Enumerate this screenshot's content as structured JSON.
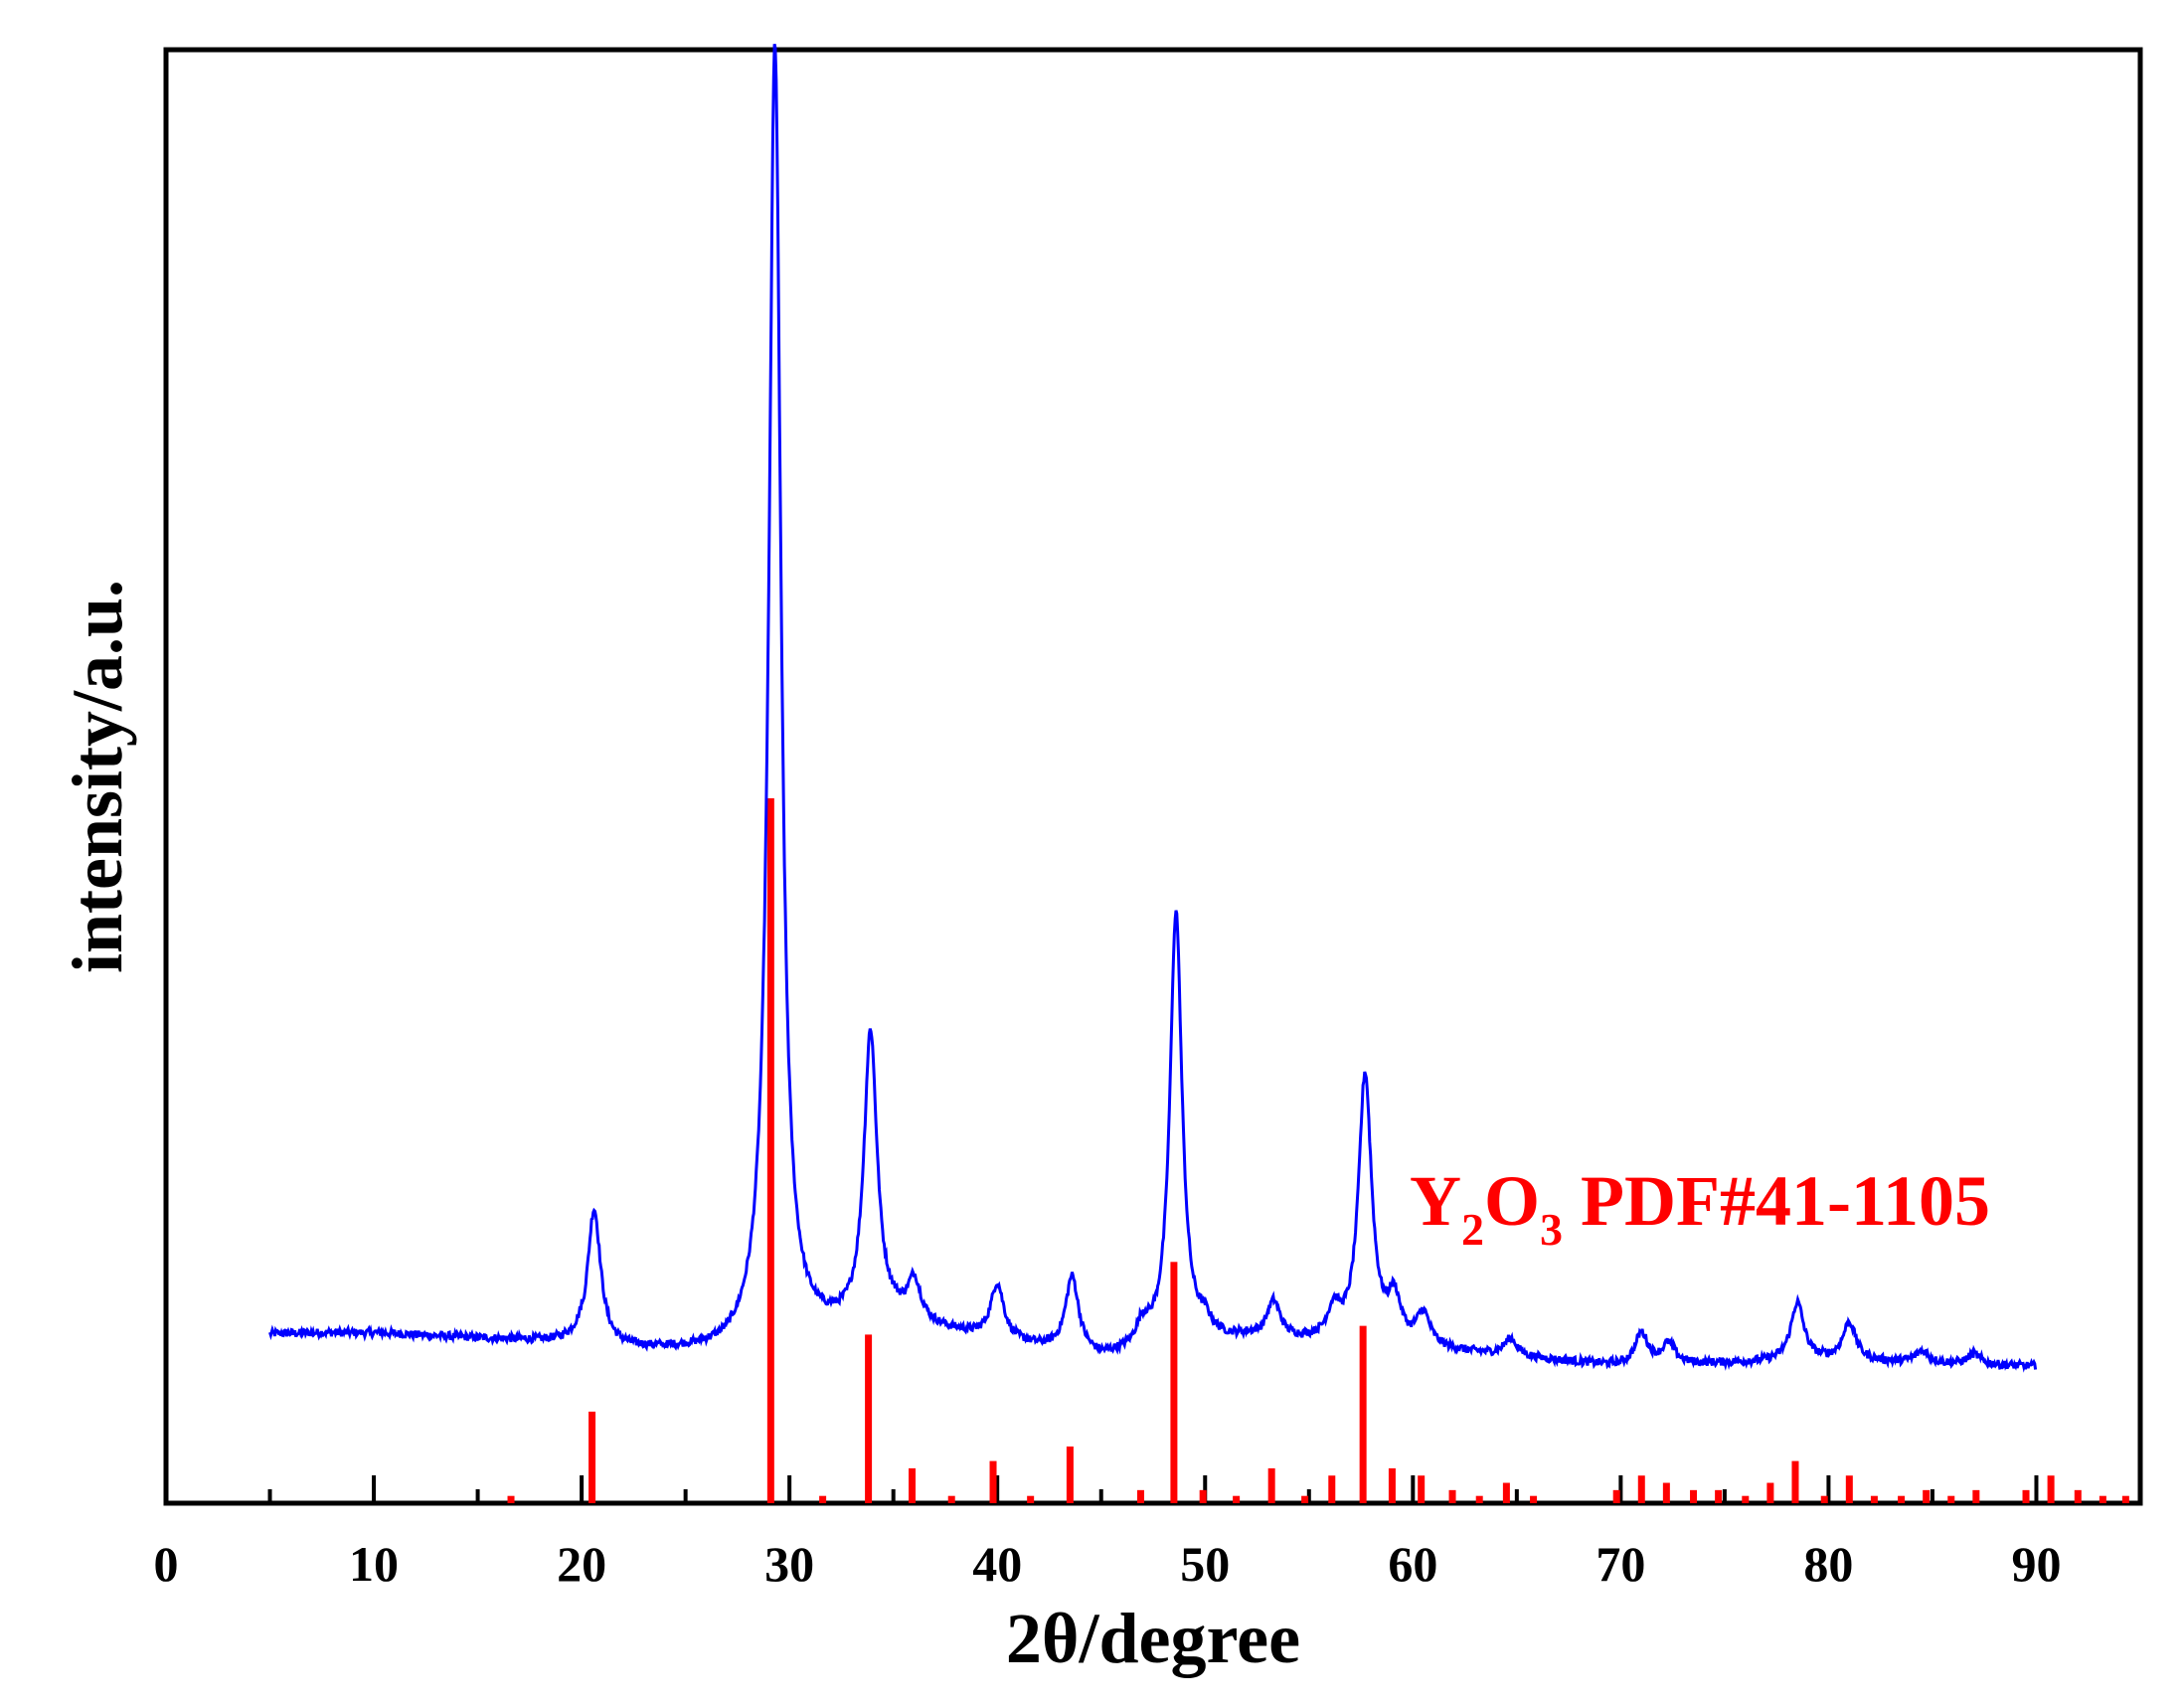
{
  "chart_data": {
    "type": "line",
    "title": "",
    "xlabel": "2θ/degree",
    "ylabel": "intensity/a.u.",
    "xlim": [
      0,
      95
    ],
    "ylim": [
      0,
      100
    ],
    "x_ticks": [
      0,
      10,
      20,
      30,
      40,
      50,
      60,
      70,
      80,
      90
    ],
    "x_minor_ticks": [
      5,
      15,
      25,
      35,
      45,
      55,
      65,
      75,
      85
    ],
    "y_ticks": [],
    "grid": false,
    "series": [
      {
        "type": "line",
        "color": "#0000ff",
        "peaks": [
          {
            "x": 20.6,
            "y": 9.5
          },
          {
            "x": 29.3,
            "y": 89.5
          },
          {
            "x": 33.9,
            "y": 20.0
          },
          {
            "x": 36.0,
            "y": 2.8
          },
          {
            "x": 40.0,
            "y": 3.8
          },
          {
            "x": 43.6,
            "y": 5.2
          },
          {
            "x": 47.0,
            "y": 1.5
          },
          {
            "x": 48.6,
            "y": 30.0
          },
          {
            "x": 50.0,
            "y": 1.0
          },
          {
            "x": 53.3,
            "y": 2.5
          },
          {
            "x": 56.2,
            "y": 2.0
          },
          {
            "x": 57.7,
            "y": 18.5
          },
          {
            "x": 59.1,
            "y": 3.0
          },
          {
            "x": 60.5,
            "y": 2.2
          },
          {
            "x": 64.7,
            "y": 1.2
          },
          {
            "x": 71.0,
            "y": 2.2
          },
          {
            "x": 72.3,
            "y": 1.4
          },
          {
            "x": 78.5,
            "y": 4.0
          },
          {
            "x": 81.0,
            "y": 2.6
          },
          {
            "x": 84.5,
            "y": 0.8
          },
          {
            "x": 87.0,
            "y": 0.7
          }
        ]
      },
      {
        "type": "bar",
        "name": "Y₂O₃ PDF#41-1105",
        "color": "#ff0000",
        "x": [
          16.6,
          20.5,
          29.1,
          31.6,
          33.8,
          35.9,
          37.8,
          39.8,
          41.6,
          43.5,
          46.9,
          48.5,
          49.9,
          51.5,
          53.2,
          54.8,
          56.1,
          57.6,
          59.0,
          60.4,
          61.9,
          63.2,
          64.5,
          65.8,
          69.8,
          71.0,
          72.2,
          73.5,
          74.7,
          76.0,
          77.2,
          78.4,
          79.8,
          81.0,
          82.2,
          83.5,
          84.7,
          85.9,
          87.1,
          89.5,
          90.7,
          92.0,
          93.2,
          94.3
        ],
        "values": [
          0.5,
          6.3,
          48.5,
          0.5,
          11.6,
          2.4,
          0.5,
          2.9,
          0.5,
          3.9,
          0.9,
          16.6,
          0.9,
          0.5,
          2.4,
          0.5,
          1.9,
          12.2,
          2.4,
          1.9,
          0.9,
          0.5,
          1.4,
          0.5,
          0.9,
          1.9,
          1.4,
          0.9,
          0.9,
          0.5,
          1.4,
          2.9,
          0.5,
          1.9,
          0.5,
          0.5,
          0.9,
          0.5,
          0.9,
          0.9,
          1.9,
          0.9,
          0.5,
          0.5
        ]
      }
    ],
    "legend": {
      "position": "right",
      "label_main": "Y",
      "label_sub1": "2",
      "label_mid": "O",
      "label_sub2": "3",
      "label_rest": " PDF#41-1105",
      "color": "#ff0000"
    }
  }
}
